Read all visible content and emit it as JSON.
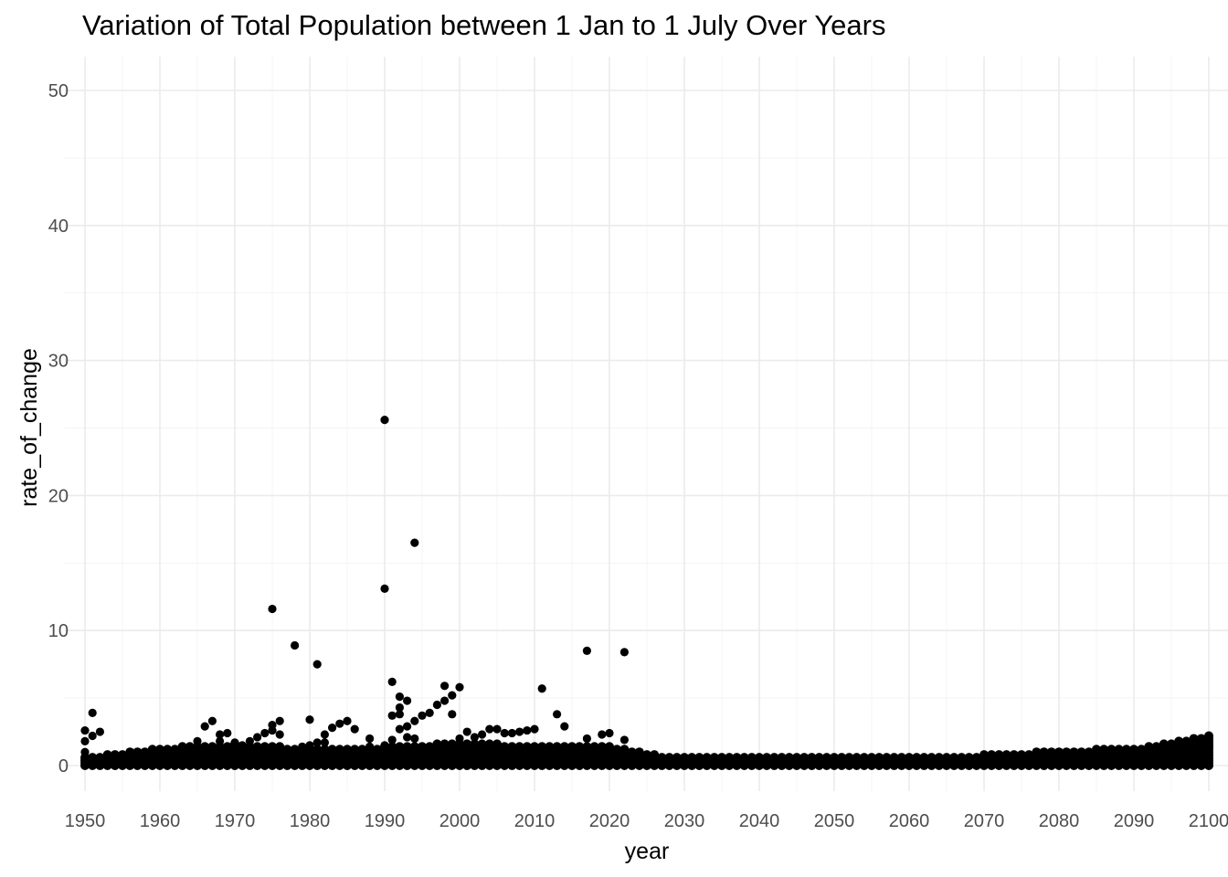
{
  "chart_data": {
    "type": "scatter",
    "title": "Variation of Total Population between 1 Jan to 1 July Over Years",
    "xlabel": "year",
    "ylabel": "rate_of_change",
    "xlim": [
      1950,
      2100
    ],
    "ylim": [
      0,
      50
    ],
    "x_ticks": [
      1950,
      1960,
      1970,
      1980,
      1990,
      2000,
      2010,
      2020,
      2030,
      2040,
      2050,
      2060,
      2070,
      2080,
      2090,
      2100
    ],
    "y_ticks": [
      0,
      10,
      20,
      30,
      40,
      50
    ],
    "grid": true,
    "legend": "none",
    "point_color": "#000000",
    "points": [
      [
        1950,
        2.6
      ],
      [
        1950,
        1.8
      ],
      [
        1950,
        1.0
      ],
      [
        1951,
        3.9
      ],
      [
        1951,
        2.2
      ],
      [
        1952,
        2.5
      ],
      [
        1965,
        1.8
      ],
      [
        1966,
        2.9
      ],
      [
        1967,
        3.3
      ],
      [
        1968,
        2.3
      ],
      [
        1968,
        1.8
      ],
      [
        1969,
        2.4
      ],
      [
        1970,
        1.7
      ],
      [
        1971,
        1.5
      ],
      [
        1972,
        1.8
      ],
      [
        1973,
        2.1
      ],
      [
        1974,
        2.4
      ],
      [
        1975,
        11.6
      ],
      [
        1975,
        3.0
      ],
      [
        1975,
        2.6
      ],
      [
        1976,
        3.3
      ],
      [
        1976,
        2.3
      ],
      [
        1977,
        1.2
      ],
      [
        1978,
        8.9
      ],
      [
        1979,
        1.4
      ],
      [
        1980,
        3.4
      ],
      [
        1980,
        1.5
      ],
      [
        1981,
        7.5
      ],
      [
        1981,
        1.7
      ],
      [
        1982,
        2.3
      ],
      [
        1982,
        1.7
      ],
      [
        1983,
        2.8
      ],
      [
        1984,
        3.1
      ],
      [
        1985,
        3.3
      ],
      [
        1986,
        2.7
      ],
      [
        1987,
        1.1
      ],
      [
        1988,
        2.0
      ],
      [
        1988,
        1.4
      ],
      [
        1989,
        1.2
      ],
      [
        1990,
        25.6
      ],
      [
        1990,
        13.1
      ],
      [
        1990,
        1.5
      ],
      [
        1991,
        6.2
      ],
      [
        1991,
        3.7
      ],
      [
        1991,
        1.9
      ],
      [
        1992,
        5.1
      ],
      [
        1992,
        4.3
      ],
      [
        1992,
        3.8
      ],
      [
        1992,
        2.7
      ],
      [
        1993,
        4.8
      ],
      [
        1993,
        2.9
      ],
      [
        1993,
        2.1
      ],
      [
        1994,
        16.5
      ],
      [
        1994,
        3.3
      ],
      [
        1994,
        2.0
      ],
      [
        1995,
        3.7
      ],
      [
        1996,
        3.9
      ],
      [
        1997,
        4.5
      ],
      [
        1998,
        5.9
      ],
      [
        1998,
        4.8
      ],
      [
        1999,
        5.2
      ],
      [
        1999,
        3.8
      ],
      [
        2000,
        5.8
      ],
      [
        2000,
        2.0
      ],
      [
        2001,
        2.5
      ],
      [
        2002,
        2.1
      ],
      [
        2003,
        2.3
      ],
      [
        2004,
        2.7
      ],
      [
        2005,
        2.7
      ],
      [
        2006,
        2.4
      ],
      [
        2007,
        2.4
      ],
      [
        2008,
        2.5
      ],
      [
        2009,
        2.6
      ],
      [
        2010,
        2.7
      ],
      [
        2011,
        5.7
      ],
      [
        2012,
        1.4
      ],
      [
        2013,
        3.8
      ],
      [
        2014,
        2.9
      ],
      [
        2017,
        8.5
      ],
      [
        2017,
        2.0
      ],
      [
        2019,
        2.3
      ],
      [
        2020,
        2.4
      ],
      [
        2022,
        8.4
      ],
      [
        2022,
        1.9
      ]
    ],
    "dense_band": {
      "note": "a continuous band of points is drawn for every year 1950-2100 between 0 and its upper edge",
      "upper_edge": [
        [
          1950,
          0.6
        ],
        [
          1960,
          1.3
        ],
        [
          1965,
          1.5
        ],
        [
          1970,
          1.6
        ],
        [
          1980,
          1.3
        ],
        [
          1990,
          1.4
        ],
        [
          2000,
          1.7
        ],
        [
          2010,
          1.5
        ],
        [
          2020,
          1.5
        ],
        [
          2026,
          0.8
        ],
        [
          2030,
          0.6
        ],
        [
          2040,
          0.6
        ],
        [
          2060,
          0.6
        ],
        [
          2070,
          0.8
        ],
        [
          2080,
          1.1
        ],
        [
          2090,
          1.3
        ],
        [
          2100,
          2.2
        ]
      ]
    }
  }
}
